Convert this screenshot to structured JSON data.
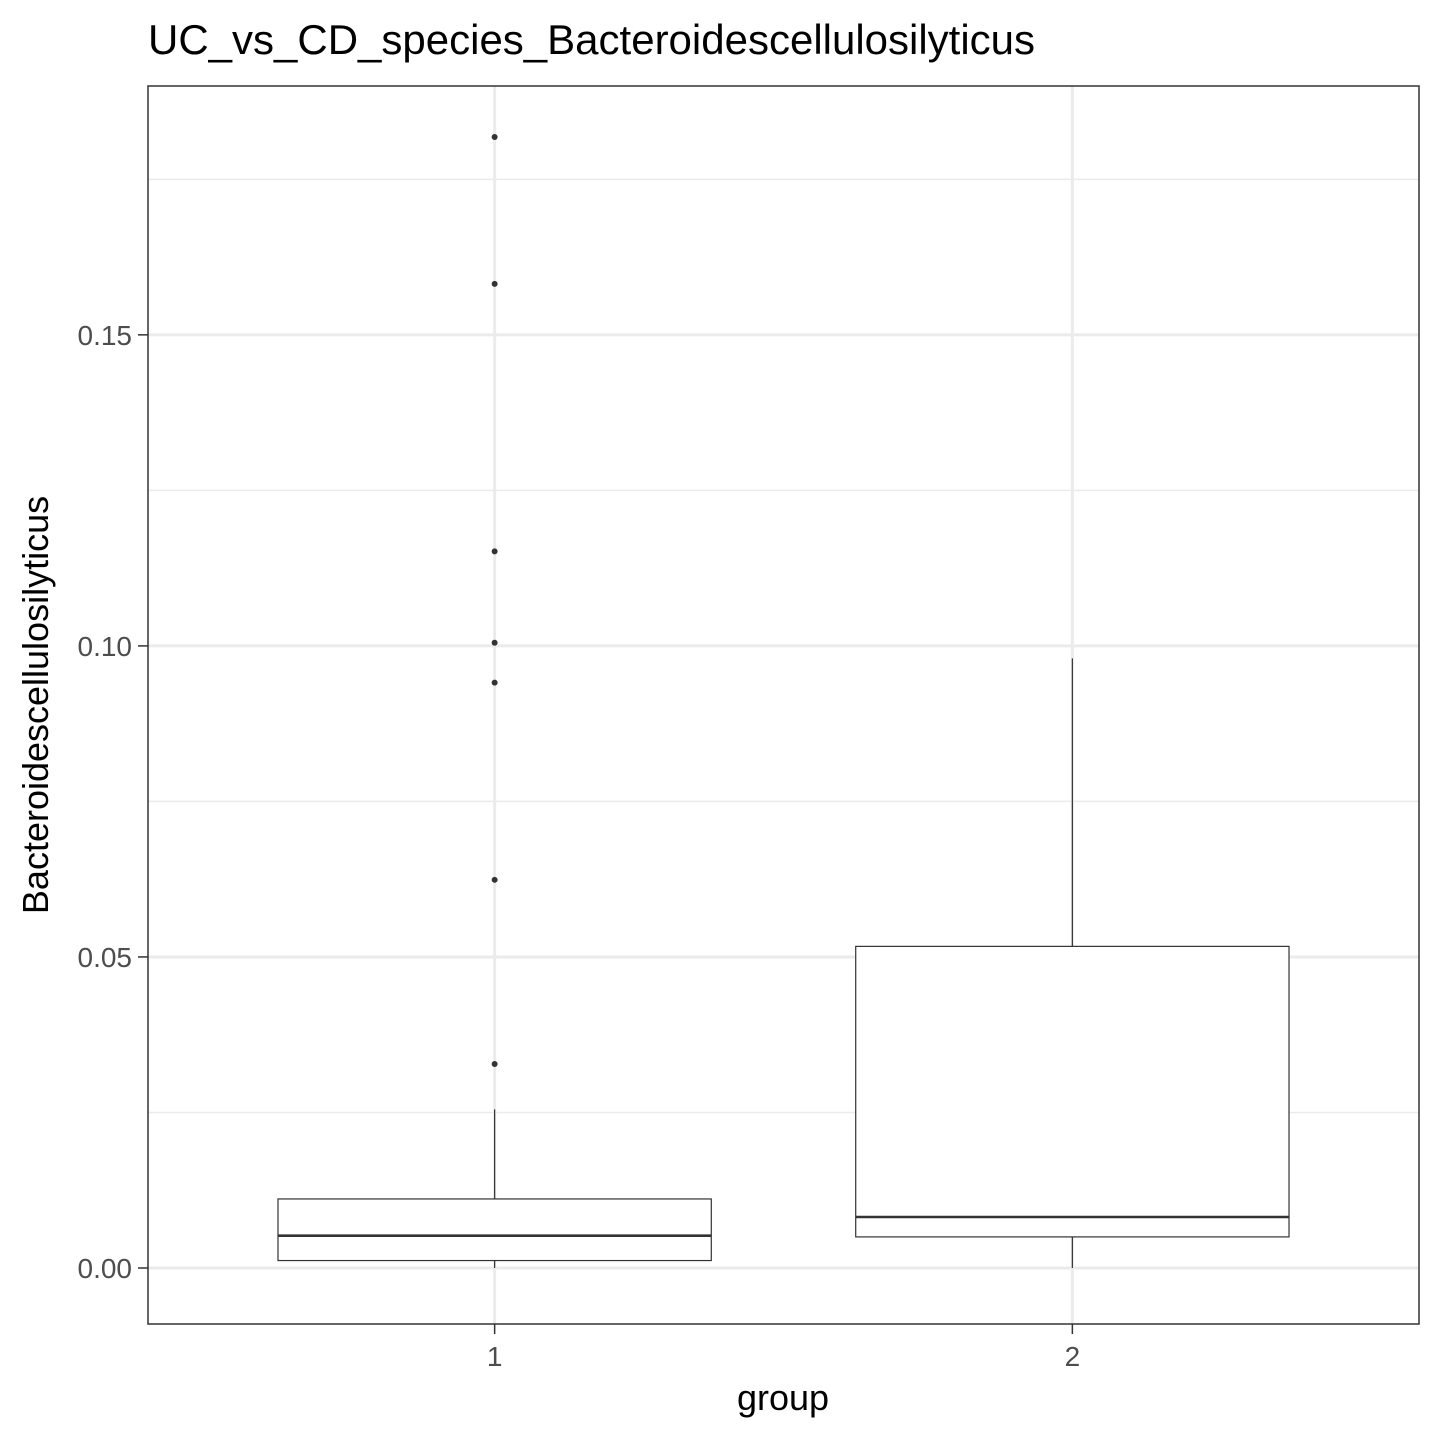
{
  "chart_data": {
    "type": "box",
    "title": "UC_vs_CD_species_Bacteroidescellulosilyticus",
    "xlabel": "group",
    "ylabel": "Bacteroidescellulosilyticus",
    "categories": [
      "1",
      "2"
    ],
    "ylim": [
      -0.009,
      0.19
    ],
    "yticks": [
      0.0,
      0.05,
      0.1,
      0.15
    ],
    "ytick_labels": [
      "0.00",
      "0.05",
      "0.10",
      "0.15"
    ],
    "grid": true,
    "boxes": [
      {
        "group": "1",
        "whisker_low": 0.0,
        "q1": 0.0012,
        "median": 0.0052,
        "q3": 0.0111,
        "whisker_high": 0.0255,
        "outliers": [
          0.0328,
          0.0624,
          0.0941,
          0.1005,
          0.1152,
          0.1582,
          0.1818
        ]
      },
      {
        "group": "2",
        "whisker_low": 0.0,
        "q1": 0.005,
        "median": 0.0082,
        "q3": 0.0517,
        "whisker_high": 0.098,
        "outliers": []
      }
    ],
    "colors": {
      "box_fill": "#ffffff",
      "box_stroke": "#333333",
      "grid_major": "#ebebeb",
      "panel_border": "#333333",
      "outlier": "#333333"
    }
  }
}
